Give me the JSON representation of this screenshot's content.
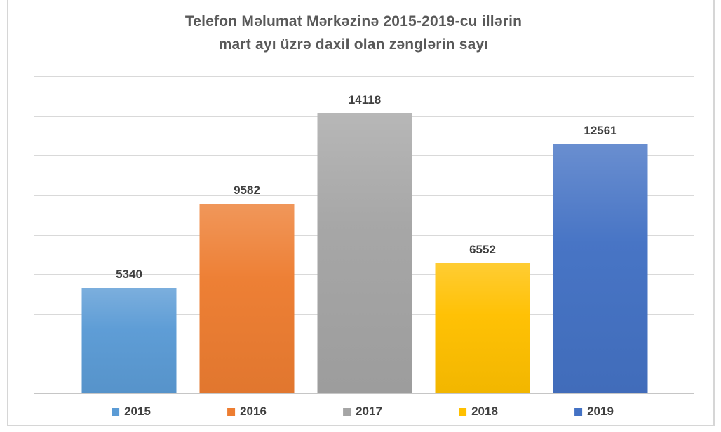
{
  "chart_data": {
    "type": "bar",
    "title": "Telefon Məlumat Mərkəzinə 2015-2019-cu illərin mart ayı üzrə daxil olan zənglərin sayı",
    "title_lines": [
      "Telefon Məlumat Mərkəzinə 2015-2019-cu illərin",
      "mart ayı üzrə daxil olan zənglərin sayı"
    ],
    "categories": [
      "2015",
      "2016",
      "2017",
      "2018",
      "2019"
    ],
    "values": [
      5340,
      9582,
      14118,
      6552,
      12561
    ],
    "data_labels": [
      "5340",
      "9582",
      "14118",
      "6552",
      "12561"
    ],
    "bar_colors": [
      "#5B9BD5",
      "#ED7D31",
      "#A5A5A5",
      "#FFC000",
      "#4472C4"
    ],
    "xlabel": "",
    "ylabel": "",
    "ylim": [
      0,
      16000
    ],
    "gridline_step": 2000,
    "grid": true,
    "y_tick_labels_visible": false,
    "legend_position": "bottom",
    "legend_entries": [
      "2015",
      "2016",
      "2017",
      "2018",
      "2019"
    ]
  },
  "colors": {
    "title_text": "#595959",
    "value_label_text": "#3f3f3f",
    "legend_text": "#404040",
    "gridline": "#d9d9d9",
    "frame_border": "#d6d6d6",
    "background": "#ffffff"
  }
}
